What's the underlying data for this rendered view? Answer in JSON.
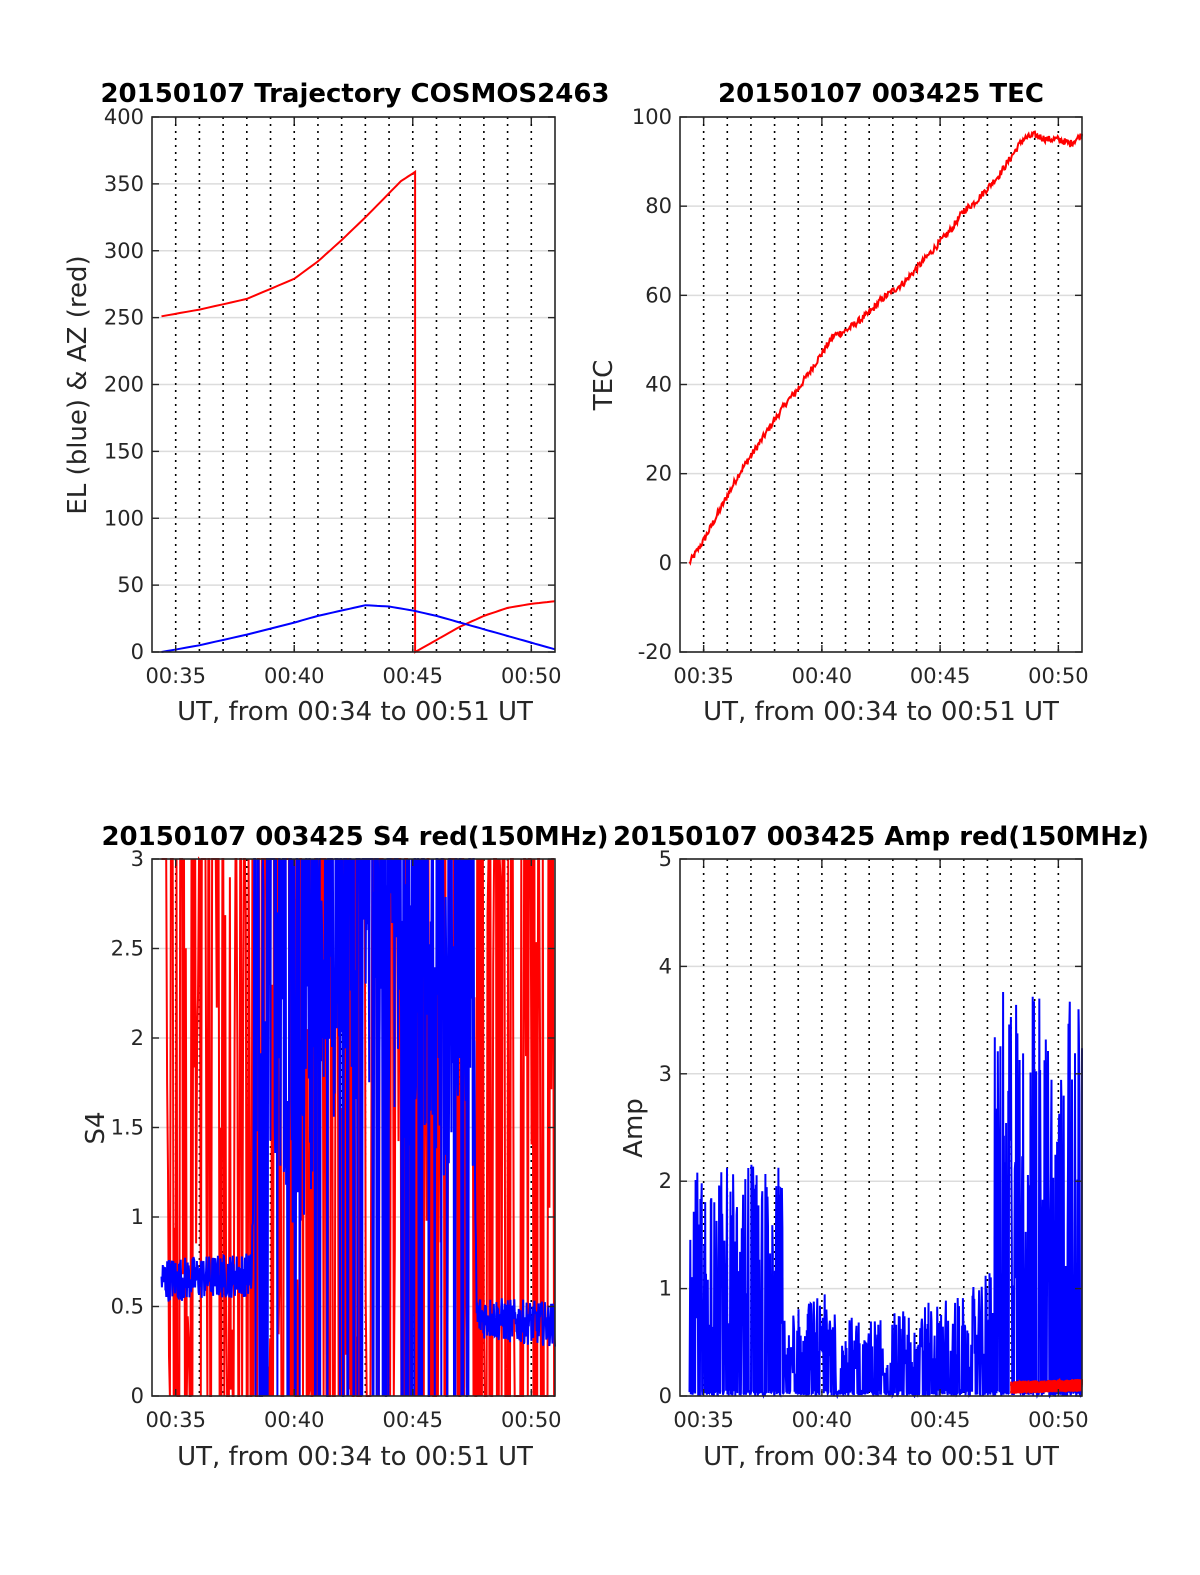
{
  "colors": {
    "red": "#ff0000",
    "blue": "#0000ff",
    "grid_h": "#dcdcdc",
    "grid_v": "#000000",
    "axis": "#262626"
  },
  "chart_data": [
    {
      "type": "line",
      "title": "20150107 Trajectory COSMOS2463",
      "xlabel": "UT, from 00:34 to 00:51 UT",
      "ylabel": "EL (blue) & AZ (red)",
      "xlim": [
        "00:34",
        "00:51"
      ],
      "ylim": [
        0,
        400
      ],
      "yticks": [
        0,
        50,
        100,
        150,
        200,
        250,
        300,
        350,
        400
      ],
      "xtick_labels": [
        "00:35",
        "00:40",
        "00:45",
        "00:50"
      ],
      "grid": "y-major solid, x-minor dotted every minute",
      "series": [
        {
          "color": "red",
          "x": [
            "00:34.4",
            "00:36",
            "00:38",
            "00:40",
            "00:41",
            "00:42",
            "00:43",
            "00:44",
            "00:44.5",
            "00:45.1",
            "00:45.1",
            "00:46",
            "00:47",
            "00:48",
            "00:49",
            "00:50",
            "00:51"
          ],
          "y": [
            251,
            256,
            264,
            279,
            292,
            308,
            325,
            343,
            352,
            359,
            0,
            9,
            19,
            27,
            33,
            36,
            38
          ]
        },
        {
          "color": "blue",
          "x": [
            "00:34.4",
            "00:36",
            "00:38",
            "00:40",
            "00:41",
            "00:42",
            "00:43",
            "00:44",
            "00:45",
            "00:46",
            "00:47",
            "00:48",
            "00:49",
            "00:50",
            "00:51"
          ],
          "y": [
            0,
            5,
            13,
            22,
            27,
            31,
            35,
            34,
            31,
            27,
            22,
            17,
            12,
            7,
            2
          ]
        }
      ]
    },
    {
      "type": "line",
      "title": "20150107 003425 TEC",
      "xlabel": "UT, from 00:34 to 00:51 UT",
      "ylabel": "TEC",
      "xlim": [
        "00:34",
        "00:51"
      ],
      "ylim": [
        -20,
        100
      ],
      "yticks": [
        -20,
        0,
        20,
        40,
        60,
        80,
        100
      ],
      "xtick_labels": [
        "00:35",
        "00:40",
        "00:45",
        "00:50"
      ],
      "series": [
        {
          "color": "red",
          "x": [
            "00:34.4",
            "00:35",
            "00:35.5",
            "00:36",
            "00:36.5",
            "00:37",
            "00:37.5",
            "00:38",
            "00:38.5",
            "00:39",
            "00:39.5",
            "00:40",
            "00:40.5",
            "00:41",
            "00:41.5",
            "00:42",
            "00:42.5",
            "00:43",
            "00:43.5",
            "00:44",
            "00:44.5",
            "00:45",
            "00:45.5",
            "00:46",
            "00:46.5",
            "00:47",
            "00:47.5",
            "00:48",
            "00:48.5",
            "00:49",
            "00:49.5",
            "00:50",
            "00:50.5",
            "00:51"
          ],
          "y": [
            0,
            5,
            10,
            15,
            20,
            24,
            28,
            32,
            36,
            39,
            43,
            47,
            51,
            52,
            54,
            56,
            59,
            61,
            63,
            66,
            69,
            72,
            75,
            79,
            81,
            84,
            87,
            91,
            95,
            96,
            95,
            95,
            94,
            96
          ]
        }
      ]
    },
    {
      "type": "line",
      "title": "20150107 003425 S4 red(150MHz)",
      "xlabel": "UT, from 00:34 to 00:51 UT",
      "ylabel": "S4",
      "xlim": [
        "00:34",
        "00:51"
      ],
      "ylim": [
        0,
        3
      ],
      "yticks": [
        0,
        0.5,
        1,
        1.5,
        2,
        2.5,
        3
      ],
      "ytick_labels": [
        "0",
        "0.5",
        "1",
        "1.5",
        "2",
        "2.5",
        "3"
      ],
      "xtick_labels": [
        "00:35",
        "00:40",
        "00:45",
        "00:50"
      ],
      "series": [
        {
          "color": "red",
          "description_level": {
            "x": [
              "00:34.4",
              "00:51"
            ],
            "y": [
              0,
              3
            ]
          }
        },
        {
          "color": "blue",
          "x": [
            "00:34.4",
            "00:36",
            "00:38.2",
            "00:38.5",
            "00:40",
            "00:42",
            "00:44",
            "00:46",
            "00:47.5",
            "00:47.7",
            "00:49",
            "00:51"
          ],
          "y": [
            0.65,
            0.66,
            0.68,
            2.5,
            1.6,
            2.5,
            2.3,
            1.9,
            2.4,
            0.45,
            0.42,
            0.4
          ]
        }
      ]
    },
    {
      "type": "line",
      "title": "20150107 003425 Amp red(150MHz)",
      "xlabel": "UT, from 00:34 to 00:51 UT",
      "ylabel": "Amp",
      "xlim": [
        "00:34",
        "00:51"
      ],
      "ylim": [
        0,
        5
      ],
      "yticks": [
        0,
        1,
        2,
        3,
        4,
        5
      ],
      "xtick_labels": [
        "00:35",
        "00:40",
        "00:45",
        "00:50"
      ],
      "series": [
        {
          "color": "blue",
          "x": [
            "00:34.4",
            "00:36",
            "00:38.3",
            "00:38.4",
            "00:40",
            "00:42",
            "00:44",
            "00:46",
            "00:47.2",
            "00:47.3",
            "00:49",
            "00:51"
          ],
          "y": [
            1.8,
            1.8,
            1.8,
            0.6,
            0.8,
            0.6,
            0.7,
            0.8,
            1.0,
            3.1,
            3.3,
            3.0
          ]
        },
        {
          "color": "red",
          "x": [
            "00:48",
            "00:51"
          ],
          "y": [
            0.08,
            0.1
          ]
        }
      ]
    }
  ]
}
